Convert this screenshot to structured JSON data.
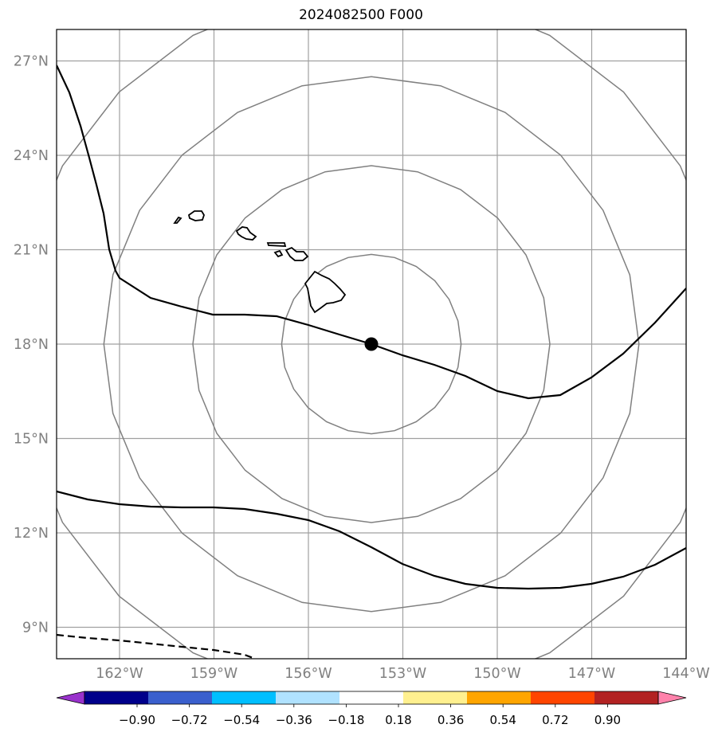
{
  "title": "2024082500 F000",
  "map": {
    "lat_range": [
      8,
      28
    ],
    "lon_range": [
      -164,
      -144
    ],
    "lat_ticks": [
      {
        "value": 9,
        "label": "9°N"
      },
      {
        "value": 12,
        "label": "12°N"
      },
      {
        "value": 15,
        "label": "15°N"
      },
      {
        "value": 18,
        "label": "18°N"
      },
      {
        "value": 21,
        "label": "21°N"
      },
      {
        "value": 24,
        "label": "24°N"
      },
      {
        "value": 27,
        "label": "27°N"
      }
    ],
    "lon_ticks": [
      {
        "value": -162,
        "label": "162°W"
      },
      {
        "value": -159,
        "label": "159°W"
      },
      {
        "value": -156,
        "label": "156°W"
      },
      {
        "value": -153,
        "label": "153°W"
      },
      {
        "value": -150,
        "label": "150°W"
      },
      {
        "value": -147,
        "label": "147°W"
      },
      {
        "value": -144,
        "label": "144°W"
      }
    ],
    "center": {
      "lon": -154,
      "lat": 18
    },
    "range_rings_deg": [
      2.85,
      5.67,
      8.5,
      11.33
    ],
    "colors": {
      "grid": "#a0a0a0",
      "rings": "#808080",
      "contour": "#000000",
      "coast": "#000000"
    }
  },
  "colorbar": {
    "ticks": [
      "−0.90",
      "−0.72",
      "−0.54",
      "−0.36",
      "−0.18",
      "0.18",
      "0.36",
      "0.54",
      "0.72",
      "0.90"
    ],
    "colors": [
      "#9932cc",
      "#00008b",
      "#3a5fcd",
      "#00bfff",
      "#b0e2ff",
      "#ffffff",
      "#fff08f",
      "#ffa500",
      "#ff4500",
      "#b22222",
      "#ff82ab"
    ]
  }
}
